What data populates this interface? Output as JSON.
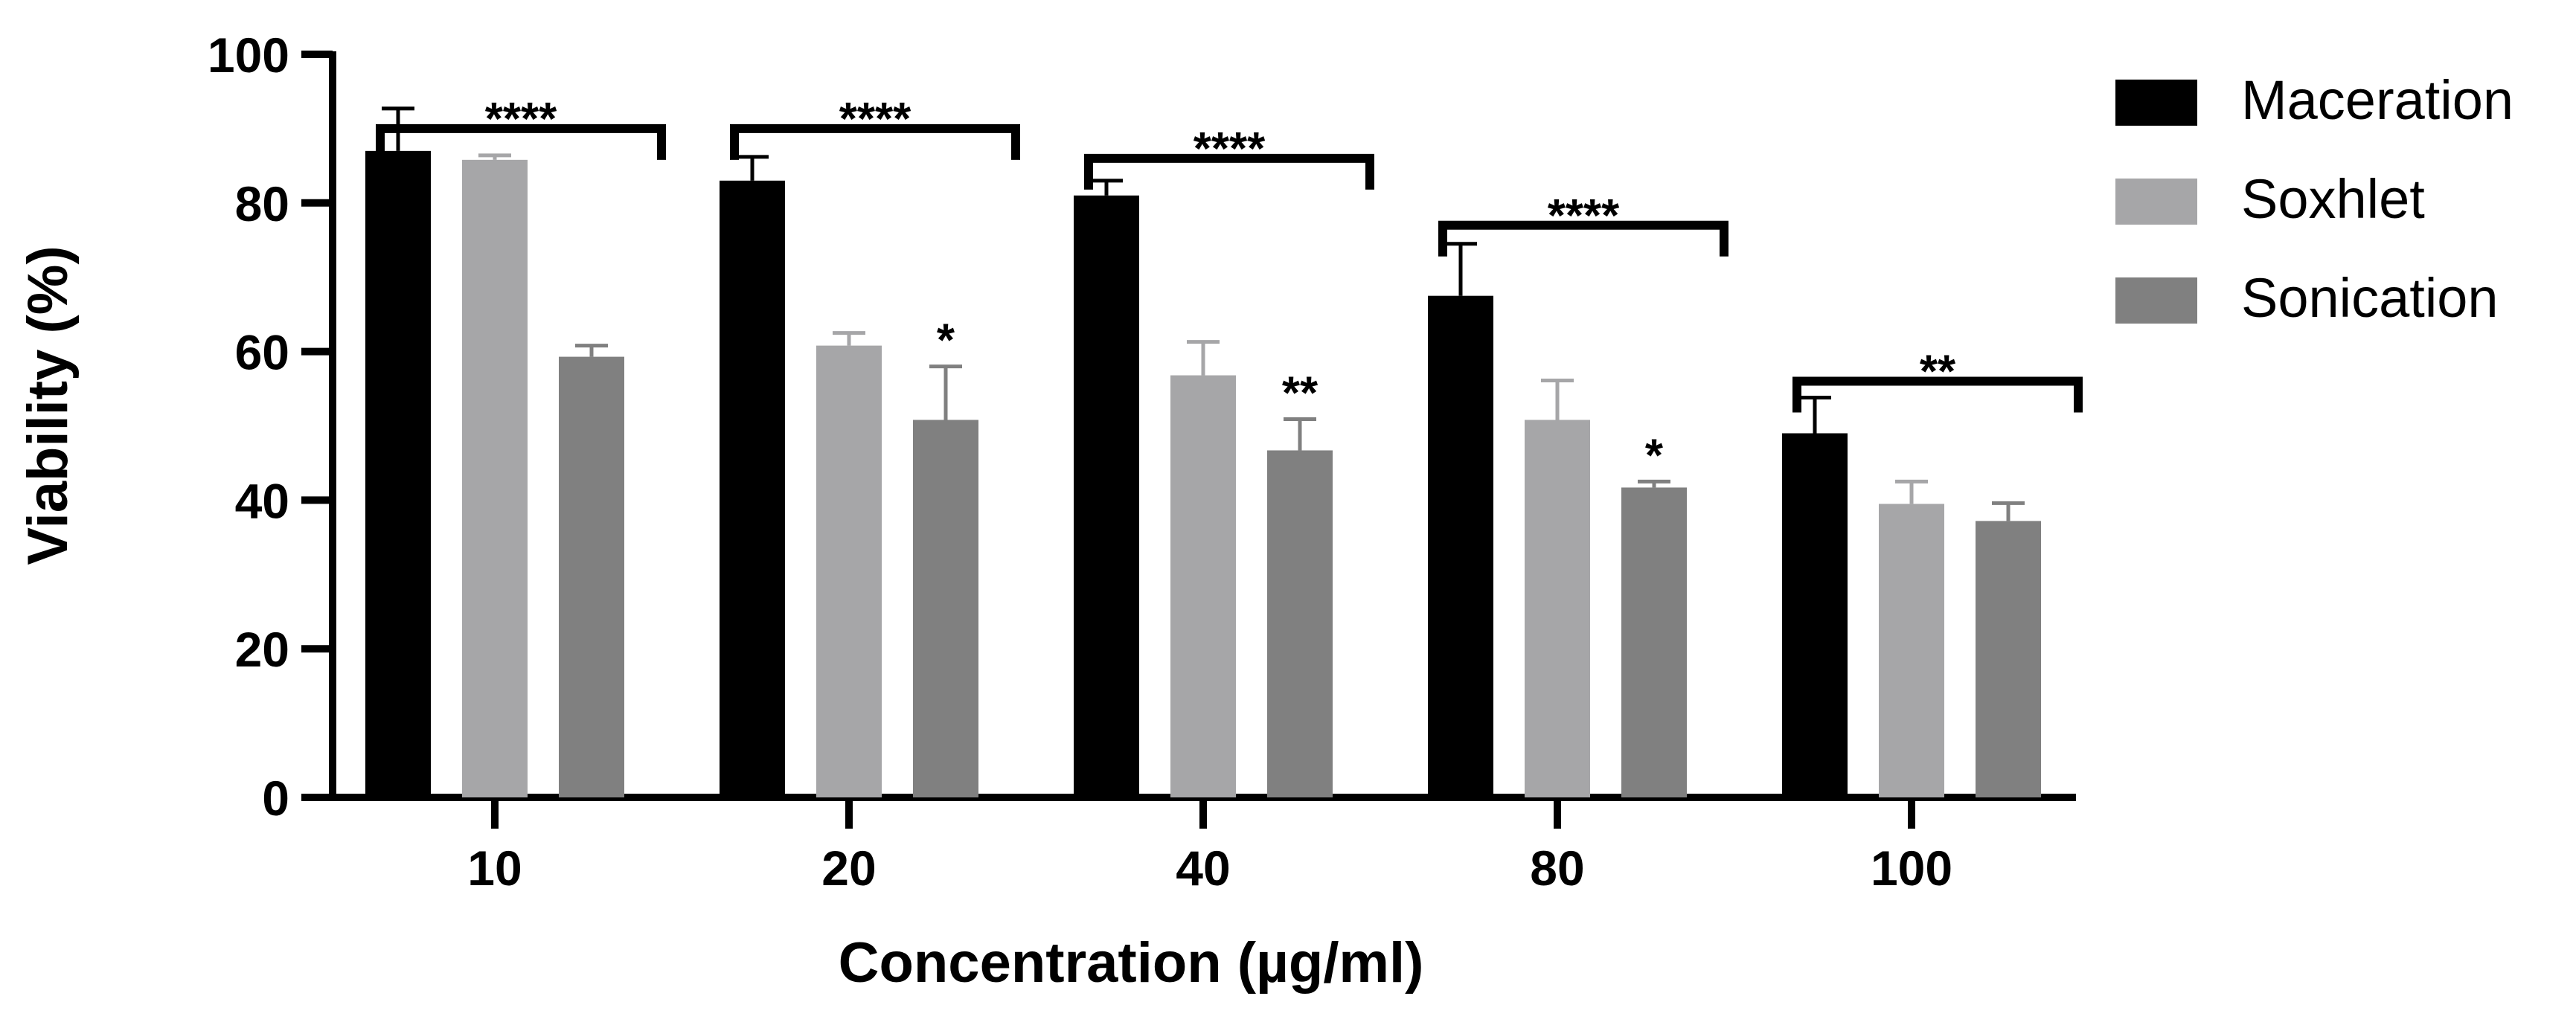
{
  "chart_data": {
    "type": "bar",
    "title": "",
    "xlabel": "Concentration (µg/ml)",
    "ylabel": "Viability (%)",
    "ylim": [
      0,
      100
    ],
    "yticks": [
      0,
      20,
      40,
      60,
      80,
      100
    ],
    "categories": [
      "10",
      "20",
      "40",
      "80",
      "100"
    ],
    "series": [
      {
        "name": "Maceration",
        "color": "#000000",
        "values": [
          87,
          83,
          81,
          67.5,
          49
        ],
        "errors": [
          5.7,
          3.2,
          2.0,
          7.0,
          4.8
        ]
      },
      {
        "name": "Soxhlet",
        "color": "#a6a6a8",
        "values": [
          85.8,
          60.8,
          56.8,
          50.8,
          39.5
        ],
        "errors": [
          0.6,
          1.7,
          4.5,
          5.3,
          3.0
        ]
      },
      {
        "name": "Sonication",
        "color": "#808080",
        "values": [
          59.3,
          50.8,
          46.7,
          41.7,
          37.2
        ],
        "errors": [
          1.5,
          7.2,
          4.2,
          0.8,
          2.4
        ]
      }
    ],
    "brackets": [
      {
        "category": 0,
        "y": 90,
        "label": "****"
      },
      {
        "category": 1,
        "y": 90,
        "label": "****"
      },
      {
        "category": 2,
        "y": 86,
        "label": "****"
      },
      {
        "category": 3,
        "y": 77,
        "label": "****"
      },
      {
        "category": 4,
        "y": 56,
        "label": "**"
      }
    ],
    "stars": [
      {
        "category": 1,
        "series": 2,
        "label": "*"
      },
      {
        "category": 2,
        "series": 2,
        "label": "**"
      },
      {
        "category": 3,
        "series": 2,
        "label": "*"
      }
    ],
    "legend_position": "top-right"
  }
}
